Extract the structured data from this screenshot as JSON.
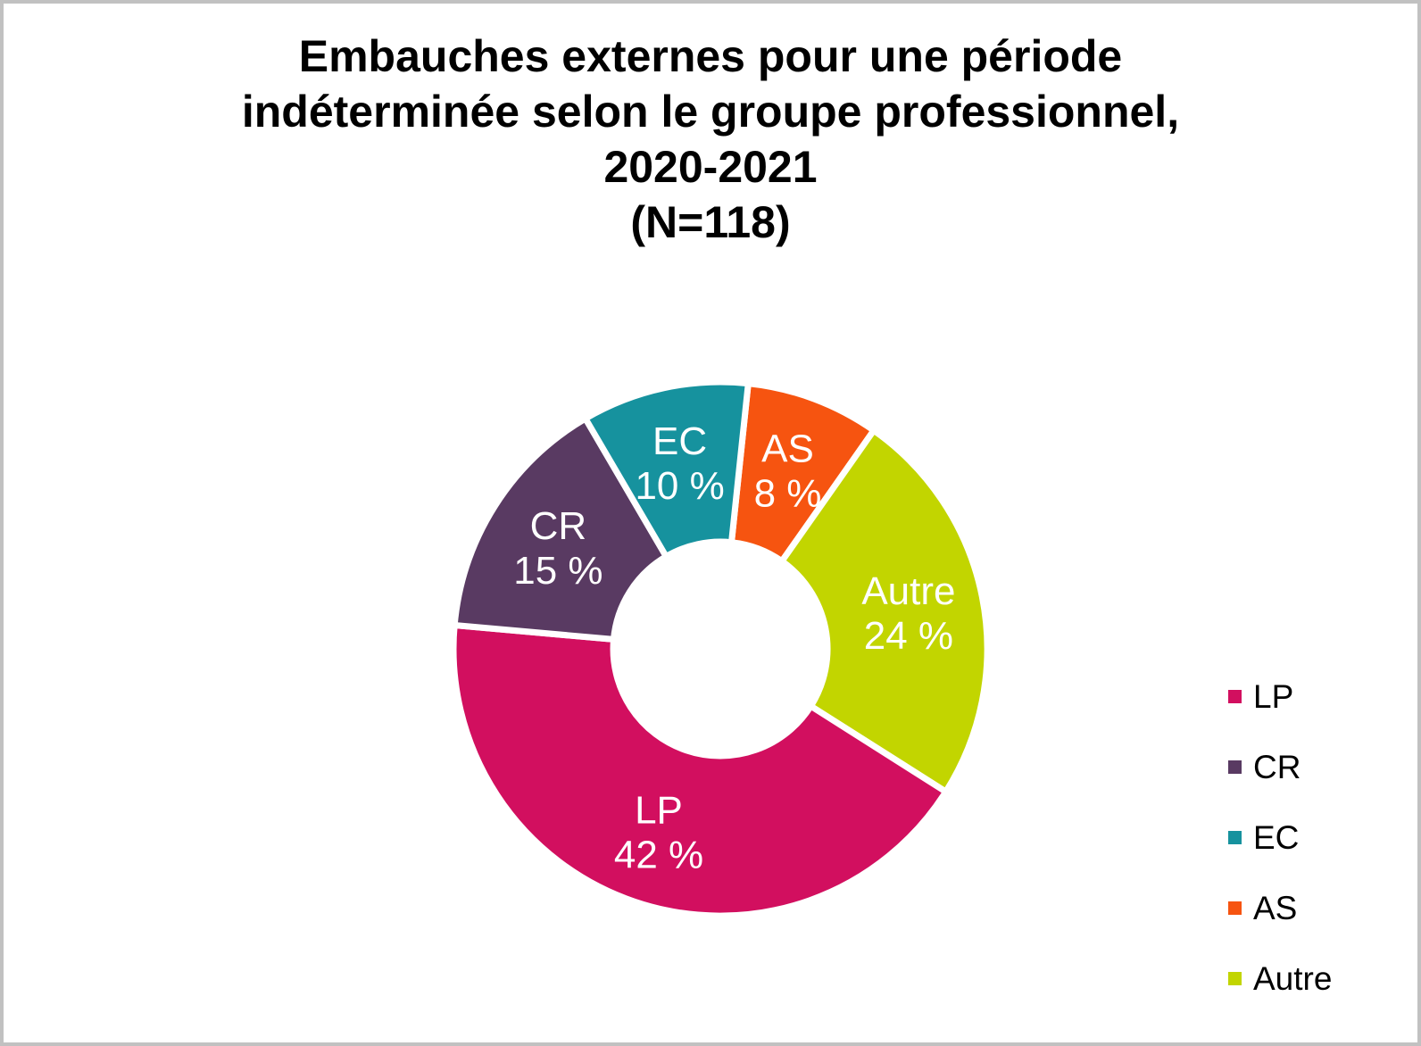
{
  "window": {
    "background": "#ffffff",
    "border_color": "#c1c1c1"
  },
  "title": {
    "lines": [
      "Embauches externes pour une période",
      "indéterminée selon le groupe professionnel,",
      "2020-2021",
      "(N=118)"
    ]
  },
  "chart_data": {
    "type": "pie",
    "subtype": "donut",
    "title": "Embauches externes pour une période indéterminée selon le groupe professionnel, 2020-2021 (N=118)",
    "sample_size_label": "(N=118)",
    "unit": "%",
    "categories": [
      "LP",
      "CR",
      "EC",
      "AS",
      "Autre"
    ],
    "values": [
      42,
      15,
      10,
      8,
      24
    ],
    "segments": [
      {
        "label": "LP",
        "value": 42,
        "value_text": "42 %",
        "color": "#d20f5f"
      },
      {
        "label": "CR",
        "value": 15,
        "value_text": "15 %",
        "color": "#593a62"
      },
      {
        "label": "EC",
        "value": 10,
        "value_text": "10 %",
        "color": "#16929e"
      },
      {
        "label": "AS",
        "value": 8,
        "value_text": "8 %",
        "color": "#f65410"
      },
      {
        "label": "Autre",
        "value": 24,
        "value_text": "24 %",
        "color": "#c2d500"
      }
    ],
    "clockwise_order_from_top": [
      "AS",
      "Autre",
      "LP",
      "CR",
      "EC"
    ],
    "start_angle_deg": 6,
    "donut_hole_ratio": 0.4,
    "slice_label_color": "#ffffff",
    "separator_color": "#ffffff",
    "legend": {
      "position": "right",
      "entries": [
        "LP",
        "CR",
        "EC",
        "AS",
        "Autre"
      ]
    }
  }
}
